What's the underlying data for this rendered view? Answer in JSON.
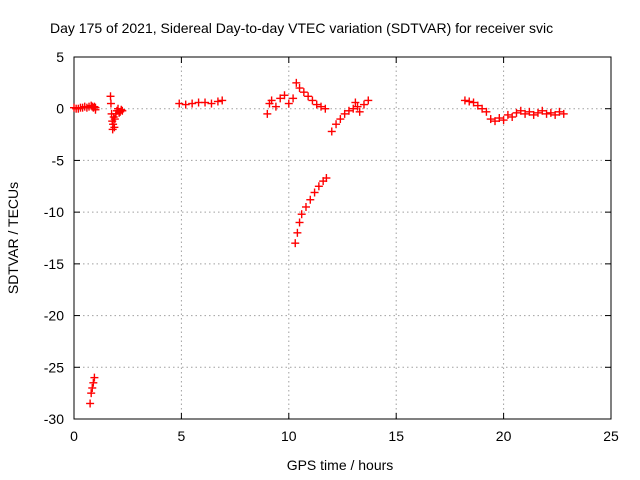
{
  "chart_data": {
    "type": "scatter",
    "title": "Day 175 of 2021, Sidereal Day-to-day VTEC variation (SDTVAR) for receiver svic",
    "xlabel": "GPS time / hours",
    "ylabel": "SDTVAR / TECUs",
    "xlim": [
      0,
      25
    ],
    "ylim": [
      -30,
      5
    ],
    "xticks": [
      0,
      5,
      10,
      15,
      20,
      25
    ],
    "yticks": [
      -30,
      -25,
      -20,
      -15,
      -10,
      -5,
      0,
      5
    ],
    "grid": true,
    "marker": "plus",
    "color": "#ff0000",
    "series": [
      {
        "x": [
          0.0,
          0.1,
          0.2,
          0.3,
          0.4,
          0.5,
          0.6,
          0.7,
          0.8,
          0.85,
          0.9,
          0.95,
          1.0,
          1.0,
          1.7,
          1.72,
          1.75,
          1.78,
          1.8,
          1.82,
          1.85,
          1.88,
          1.9,
          1.95,
          2.0,
          2.05,
          2.1,
          2.15,
          2.2,
          2.25,
          4.9,
          5.2,
          5.5,
          5.8,
          6.1,
          6.4,
          6.7,
          6.9,
          9.0,
          9.1,
          9.2,
          9.4,
          9.6,
          9.8,
          10.0,
          10.2,
          10.35,
          10.5,
          10.7,
          10.9,
          11.1,
          11.3,
          11.5,
          11.7,
          10.3,
          10.4,
          10.5,
          10.6,
          10.8,
          11.0,
          11.2,
          11.4,
          11.6,
          11.75,
          12.0,
          12.2,
          12.4,
          12.6,
          12.8,
          13.0,
          13.1,
          13.2,
          13.3,
          13.5,
          13.7,
          18.2,
          18.4,
          18.6,
          18.8,
          19.0,
          19.2,
          19.4,
          19.6,
          19.8,
          20.0,
          20.2,
          20.4,
          20.6,
          20.8,
          21.0,
          21.2,
          21.4,
          21.6,
          21.8,
          22.0,
          22.2,
          22.4,
          22.6,
          22.8,
          0.75,
          0.8,
          0.85,
          0.9,
          0.95
        ],
        "y": [
          0.1,
          0.0,
          0.0,
          0.1,
          0.1,
          0.2,
          0.1,
          0.2,
          0.3,
          0.2,
          0.1,
          0.2,
          0.1,
          -0.1,
          1.2,
          0.5,
          -0.5,
          -1.2,
          -2.0,
          -1.5,
          -0.8,
          -1.8,
          -1.0,
          -0.5,
          -0.2,
          0.0,
          -0.4,
          -0.3,
          -0.1,
          -0.2,
          0.5,
          0.4,
          0.5,
          0.6,
          0.6,
          0.5,
          0.7,
          0.8,
          -0.5,
          0.5,
          0.8,
          0.2,
          1.0,
          1.3,
          0.5,
          1.0,
          2.5,
          2.0,
          1.6,
          1.2,
          0.8,
          0.4,
          0.2,
          0.0,
          -13.0,
          -12.0,
          -11.0,
          -10.2,
          -9.5,
          -8.8,
          -8.1,
          -7.5,
          -7.0,
          -6.7,
          -2.2,
          -1.5,
          -1.0,
          -0.5,
          -0.2,
          0.0,
          0.6,
          0.2,
          -0.3,
          0.4,
          0.8,
          0.8,
          0.7,
          0.6,
          0.3,
          0.0,
          -0.3,
          -1.0,
          -1.2,
          -0.9,
          -1.1,
          -0.6,
          -0.8,
          -0.4,
          -0.2,
          -0.5,
          -0.3,
          -0.6,
          -0.4,
          -0.2,
          -0.5,
          -0.4,
          -0.6,
          -0.3,
          -0.5,
          -28.5,
          -27.5,
          -27.0,
          -26.5,
          -26.0
        ]
      }
    ]
  }
}
